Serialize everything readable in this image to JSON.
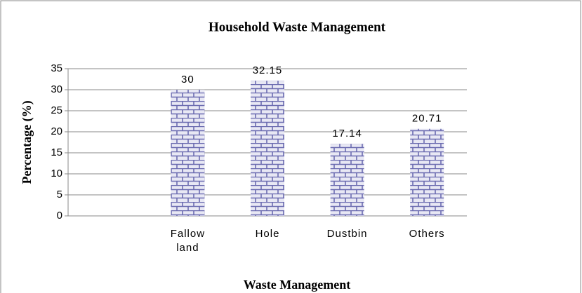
{
  "chart_data": {
    "type": "bar",
    "title": "Household Waste Management",
    "xlabel": "Waste Management",
    "ylabel": "Percentage (%)",
    "categories": [
      null,
      "Fallow land",
      "Hole",
      "Dustbin",
      "Others"
    ],
    "values": [
      null,
      30,
      32.15,
      17.14,
      20.71
    ],
    "color": "#6b6bb0",
    "ylim": [
      0,
      35
    ],
    "yticks": [
      0,
      5,
      10,
      15,
      20,
      25,
      30,
      35
    ],
    "grid": true
  }
}
